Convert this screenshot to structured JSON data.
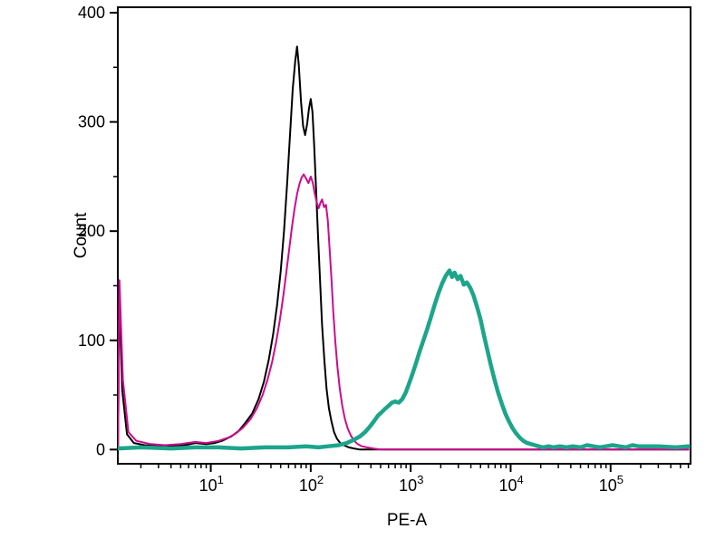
{
  "chart_data": {
    "type": "line",
    "title": "",
    "xlabel": "PE-A",
    "ylabel": "Count",
    "x_scale": "log",
    "x_tick_base": "10",
    "x_major_ticks_exponents": [
      1,
      2,
      3,
      4,
      5
    ],
    "x_range_log": [
      0.07,
      5.8
    ],
    "y_range": [
      -13,
      405
    ],
    "y_major_ticks": [
      0,
      100,
      200,
      300,
      400
    ],
    "y_minor_step": 50,
    "grid": "off",
    "legend": "none",
    "frame_color": "#000000",
    "series": [
      {
        "name": "black-curve",
        "color": "#000000",
        "width": 2,
        "points": [
          [
            1.18,
            0
          ],
          [
            1.22,
            148
          ],
          [
            1.3,
            55
          ],
          [
            1.45,
            14
          ],
          [
            1.7,
            6
          ],
          [
            2.2,
            4
          ],
          [
            3,
            3
          ],
          [
            4,
            3
          ],
          [
            5.5,
            4
          ],
          [
            7,
            6
          ],
          [
            9,
            5
          ],
          [
            11,
            6
          ],
          [
            13,
            8
          ],
          [
            16,
            12
          ],
          [
            19,
            17
          ],
          [
            22,
            24
          ],
          [
            26,
            33
          ],
          [
            30,
            46
          ],
          [
            34,
            62
          ],
          [
            38,
            82
          ],
          [
            42,
            105
          ],
          [
            46,
            132
          ],
          [
            50,
            163
          ],
          [
            54,
            200
          ],
          [
            58,
            243
          ],
          [
            62,
            288
          ],
          [
            66,
            330
          ],
          [
            70,
            356
          ],
          [
            73,
            369
          ],
          [
            76,
            352
          ],
          [
            80,
            318
          ],
          [
            84,
            296
          ],
          [
            88,
            288
          ],
          [
            92,
            298
          ],
          [
            96,
            312
          ],
          [
            100,
            321
          ],
          [
            104,
            309
          ],
          [
            108,
            280
          ],
          [
            113,
            240
          ],
          [
            118,
            198
          ],
          [
            124,
            154
          ],
          [
            130,
            114
          ],
          [
            137,
            81
          ],
          [
            144,
            56
          ],
          [
            152,
            38
          ],
          [
            161,
            26
          ],
          [
            171,
            16
          ],
          [
            183,
            10
          ],
          [
            197,
            6
          ],
          [
            215,
            4
          ],
          [
            240,
            2
          ],
          [
            270,
            1
          ],
          [
            310,
            0
          ],
          [
            600000,
            0
          ]
        ]
      },
      {
        "name": "magenta-curve",
        "color": "#cb0c8c",
        "width": 2,
        "points": [
          [
            1.18,
            0
          ],
          [
            1.22,
            155
          ],
          [
            1.32,
            64
          ],
          [
            1.5,
            16
          ],
          [
            1.8,
            8
          ],
          [
            2.5,
            5
          ],
          [
            3.5,
            4
          ],
          [
            5,
            5
          ],
          [
            7,
            7
          ],
          [
            9,
            6
          ],
          [
            12,
            8
          ],
          [
            15,
            11
          ],
          [
            18,
            15
          ],
          [
            21,
            20
          ],
          [
            25,
            28
          ],
          [
            29,
            38
          ],
          [
            33,
            50
          ],
          [
            37,
            64
          ],
          [
            41,
            80
          ],
          [
            45,
            98
          ],
          [
            49,
            118
          ],
          [
            53,
            140
          ],
          [
            57,
            162
          ],
          [
            61,
            184
          ],
          [
            65,
            204
          ],
          [
            69,
            221
          ],
          [
            73,
            234
          ],
          [
            77,
            243
          ],
          [
            81,
            249
          ],
          [
            85,
            252
          ],
          [
            90,
            248
          ],
          [
            95,
            244
          ],
          [
            100,
            250
          ],
          [
            105,
            244
          ],
          [
            110,
            234
          ],
          [
            115,
            226
          ],
          [
            120,
            221
          ],
          [
            125,
            226
          ],
          [
            130,
            229
          ],
          [
            136,
            222
          ],
          [
            142,
            224
          ],
          [
            148,
            210
          ],
          [
            154,
            185
          ],
          [
            161,
            157
          ],
          [
            168,
            127
          ],
          [
            176,
            99
          ],
          [
            185,
            76
          ],
          [
            195,
            56
          ],
          [
            207,
            40
          ],
          [
            220,
            28
          ],
          [
            235,
            19
          ],
          [
            252,
            13
          ],
          [
            272,
            8
          ],
          [
            295,
            5
          ],
          [
            325,
            3
          ],
          [
            365,
            2
          ],
          [
            420,
            1
          ],
          [
            500,
            0
          ],
          [
            600000,
            0
          ]
        ]
      },
      {
        "name": "teal-curve",
        "color": "#1da58b",
        "width": 4.5,
        "points": [
          [
            1.18,
            1
          ],
          [
            2,
            2
          ],
          [
            4,
            1
          ],
          [
            7,
            2
          ],
          [
            12,
            2
          ],
          [
            20,
            1
          ],
          [
            35,
            2
          ],
          [
            60,
            2
          ],
          [
            90,
            3
          ],
          [
            120,
            2
          ],
          [
            150,
            3
          ],
          [
            190,
            4
          ],
          [
            230,
            6
          ],
          [
            270,
            9
          ],
          [
            310,
            12
          ],
          [
            350,
            16
          ],
          [
            390,
            21
          ],
          [
            430,
            26
          ],
          [
            470,
            31
          ],
          [
            510,
            34
          ],
          [
            550,
            37
          ],
          [
            600,
            40
          ],
          [
            650,
            43
          ],
          [
            700,
            44
          ],
          [
            760,
            43
          ],
          [
            820,
            46
          ],
          [
            890,
            52
          ],
          [
            960,
            60
          ],
          [
            1040,
            69
          ],
          [
            1130,
            79
          ],
          [
            1230,
            90
          ],
          [
            1340,
            100
          ],
          [
            1460,
            110
          ],
          [
            1590,
            121
          ],
          [
            1730,
            132
          ],
          [
            1890,
            143
          ],
          [
            2060,
            152
          ],
          [
            2240,
            159
          ],
          [
            2440,
            164
          ],
          [
            2600,
            158
          ],
          [
            2750,
            162
          ],
          [
            2950,
            156
          ],
          [
            3150,
            159
          ],
          [
            3400,
            151
          ],
          [
            3650,
            153
          ],
          [
            3950,
            148
          ],
          [
            4250,
            141
          ],
          [
            4600,
            131
          ],
          [
            5000,
            119
          ],
          [
            5400,
            105
          ],
          [
            5850,
            91
          ],
          [
            6350,
            77
          ],
          [
            6900,
            64
          ],
          [
            7500,
            52
          ],
          [
            8150,
            42
          ],
          [
            8850,
            33
          ],
          [
            9600,
            26
          ],
          [
            10400,
            20
          ],
          [
            11300,
            15
          ],
          [
            12300,
            11
          ],
          [
            13400,
            8
          ],
          [
            14600,
            6
          ],
          [
            16000,
            5
          ],
          [
            17500,
            4
          ],
          [
            19000,
            3
          ],
          [
            21000,
            2
          ],
          [
            24000,
            3
          ],
          [
            27000,
            2
          ],
          [
            31000,
            3
          ],
          [
            36000,
            2
          ],
          [
            42000,
            3
          ],
          [
            50000,
            2
          ],
          [
            58000,
            4
          ],
          [
            67000,
            3
          ],
          [
            78000,
            2
          ],
          [
            90000,
            3
          ],
          [
            105000,
            4
          ],
          [
            122000,
            3
          ],
          [
            142000,
            2
          ],
          [
            165000,
            4
          ],
          [
            190000,
            3
          ],
          [
            300000,
            3
          ],
          [
            450000,
            2
          ],
          [
            600000,
            3
          ]
        ]
      }
    ]
  }
}
